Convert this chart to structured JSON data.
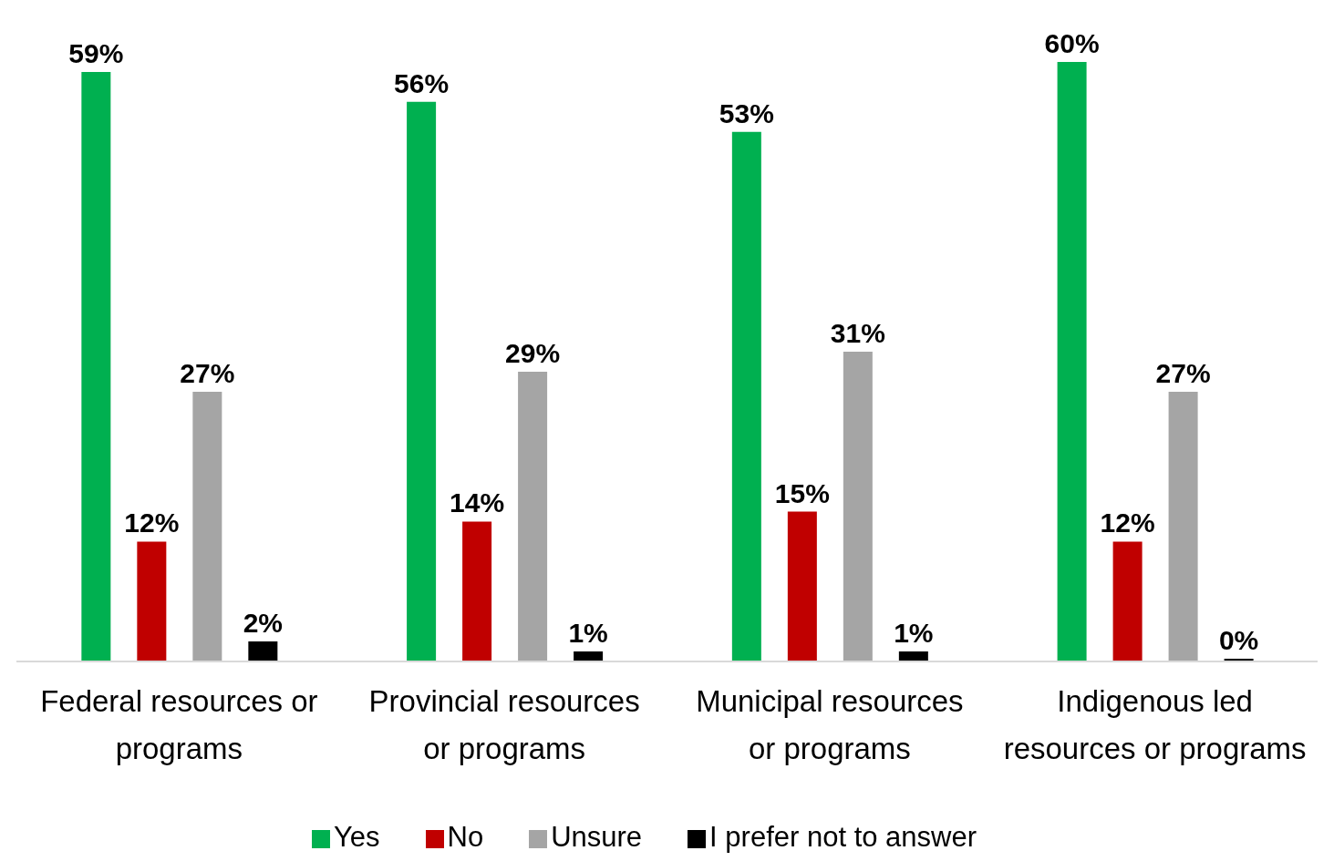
{
  "chart_data": {
    "type": "bar",
    "categories": [
      "Federal resources or programs",
      "Provincial resources or programs",
      "Municipal resources or programs",
      "Indigenous led resources or programs"
    ],
    "series": [
      {
        "name": "Yes",
        "color": "#00b050",
        "values": [
          59,
          56,
          53,
          60
        ],
        "value_labels": [
          "59%",
          "56%",
          "53%",
          "60%"
        ]
      },
      {
        "name": "No",
        "color": "#c00000",
        "values": [
          12,
          14,
          15,
          12
        ],
        "value_labels": [
          "12%",
          "14%",
          "15%",
          "12%"
        ]
      },
      {
        "name": "Unsure",
        "color": "#a5a5a5",
        "values": [
          27,
          29,
          31,
          27
        ],
        "value_labels": [
          "27%",
          "29%",
          "31%",
          "27%"
        ]
      },
      {
        "name": "I prefer not to answer",
        "color": "#000000",
        "values": [
          2,
          1,
          1,
          0
        ],
        "value_labels": [
          "2%",
          "1%",
          "1%",
          "0%"
        ]
      }
    ],
    "legend": "bottom",
    "grid": false
  }
}
